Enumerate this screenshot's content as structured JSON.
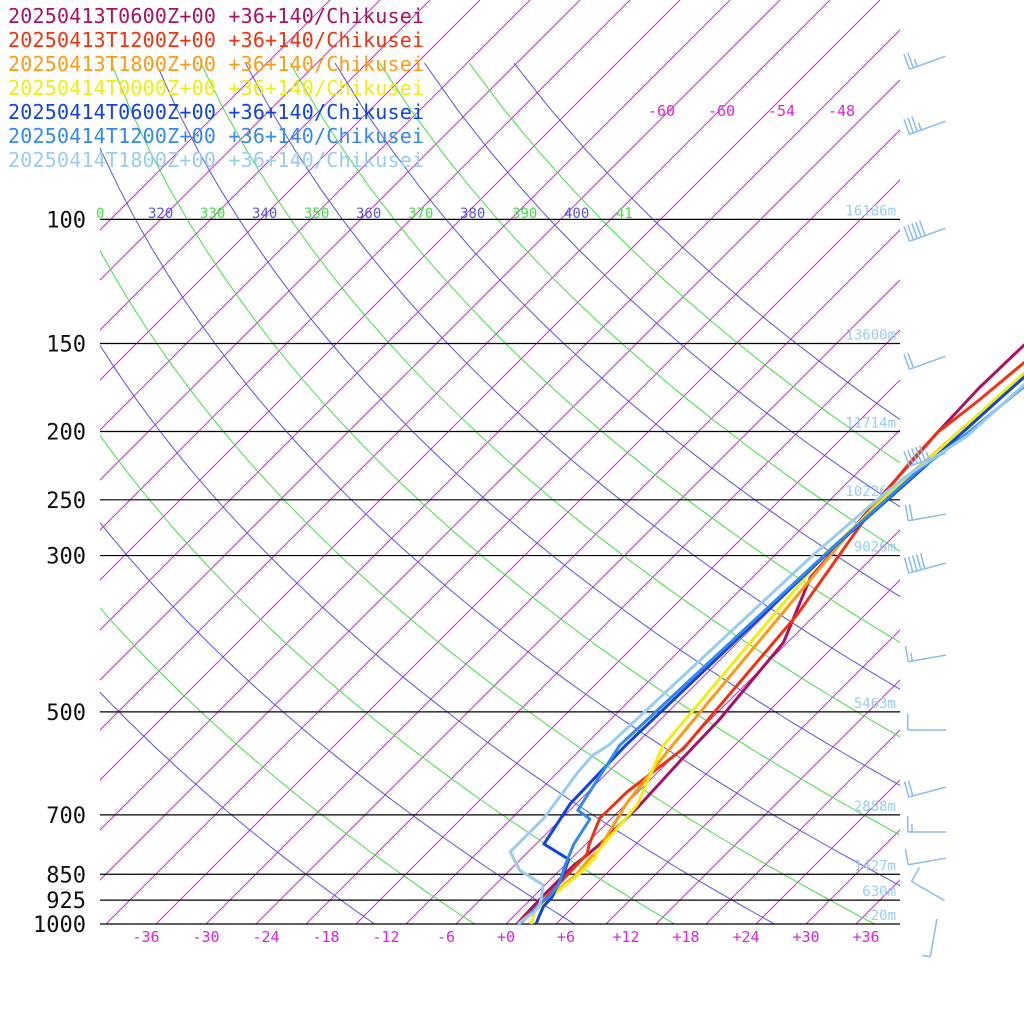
{
  "legend": [
    {
      "label": "20250413T0600Z+00 +36+140/Chikusei",
      "color": "#aa1166"
    },
    {
      "label": "20250413T1200Z+00 +36+140/Chikusei",
      "color": "#ee3311"
    },
    {
      "label": "20250413T1800Z+00 +36+140/Chikusei",
      "color": "#ff9911"
    },
    {
      "label": "20250414T0000Z+00 +36+140/Chikusei",
      "color": "#eeee11"
    },
    {
      "label": "20250414T0600Z+00 +36+140/Chikusei",
      "color": "#1144dd"
    },
    {
      "label": "20250414T1200Z+00 +36+140/Chikusei",
      "color": "#3388ee"
    },
    {
      "label": "20250414T1800Z+00 +36+140/Chikusei",
      "color": "#99ccee"
    }
  ],
  "chart_data": {
    "type": "line",
    "pressure_levels": [
      100,
      150,
      200,
      250,
      300,
      500,
      700,
      850,
      925,
      1000
    ],
    "pressure_labels": [
      "100",
      "150",
      "200",
      "250",
      "300",
      "500",
      "700",
      "850",
      "925",
      "1000"
    ],
    "height_labels": [
      "16186m",
      "13600m",
      "11714m",
      "10226m",
      "9026m",
      "5463m",
      "2888m",
      "1427m",
      "630m",
      "-20m"
    ],
    "x_ticks": [
      -36,
      -30,
      -24,
      -18,
      -12,
      -6,
      0,
      6,
      12,
      18,
      24,
      30,
      36
    ],
    "x_tick_labels": [
      "-36",
      "-30",
      "-24",
      "-18",
      "-12",
      "-6",
      "+0",
      "+6",
      "+12",
      "+18",
      "+24",
      "+30",
      "+36"
    ],
    "theta_labels": [
      "0",
      "320",
      "330",
      "340",
      "350",
      "360",
      "370",
      "380",
      "390",
      "400",
      "41"
    ],
    "theta_label_colors": [
      "#44dd44",
      "#5555dd",
      "#44dd44",
      "#5555dd",
      "#44dd44",
      "#5555dd",
      "#44dd44",
      "#5555dd",
      "#44dd44",
      "#5555dd",
      "#44dd44"
    ],
    "upper_temp_labels": [
      "-60",
      "-60",
      "-54",
      "-48"
    ],
    "colors": {
      "isotherm": "#dd22dd",
      "theta_a": "#5555dd",
      "theta_b": "#44dd44",
      "isobar": "#000000",
      "height_text": "#99ccee",
      "barb": "#88bbee"
    },
    "series": [
      {
        "name": "20250413T0600Z+00 +36+140/Chikusei",
        "color": "#aa1166",
        "points": [
          [
            43,
            40
          ],
          [
            20,
            84
          ],
          [
            -29,
            138
          ],
          [
            -56,
            222
          ],
          [
            -63,
            347
          ],
          [
            -60,
            401
          ],
          [
            -52,
            502
          ],
          [
            -42,
            645
          ],
          [
            -4,
            797
          ],
          [
            9,
            1027
          ],
          [
            11,
            1170
          ],
          [
            15,
            1359
          ],
          [
            14,
            1537
          ],
          [
            12,
            1600
          ],
          [
            9,
            1652
          ],
          [
            9,
            1834
          ],
          [
            10,
            1925
          ],
          [
            11,
            2000
          ]
        ]
      },
      {
        "name": "20250413T1200Z+00 +36+140/Chikusei",
        "color": "#ee3311",
        "points": [
          [
            46,
            42
          ],
          [
            30,
            86
          ],
          [
            5,
            118
          ],
          [
            -6,
            149
          ],
          [
            -30,
            257
          ],
          [
            -51,
            362
          ],
          [
            -60,
            401
          ],
          [
            -58,
            438
          ],
          [
            -50,
            510
          ],
          [
            -18,
            729
          ],
          [
            2,
            1127
          ],
          [
            -11,
            1299
          ],
          [
            -12,
            1416
          ],
          [
            4,
            1545
          ],
          [
            11,
            1590
          ],
          [
            12,
            1676
          ],
          [
            14,
            1859
          ],
          [
            13,
            2000
          ]
        ]
      },
      {
        "name": "20250413T1800Z+00 +36+140/Chikusei",
        "color": "#ff9911",
        "points": [
          [
            47,
            38
          ],
          [
            35,
            75
          ],
          [
            10,
            108
          ],
          [
            -4,
            146
          ],
          [
            -22,
            242
          ],
          [
            -34,
            350
          ],
          [
            -42,
            427
          ],
          [
            -50,
            500
          ],
          [
            -47,
            567
          ],
          [
            -11,
            1140
          ],
          [
            0,
            1350
          ],
          [
            19,
            1575
          ],
          [
            18,
            1614
          ],
          [
            21,
            1702
          ],
          [
            17,
            1808
          ],
          [
            16,
            1873
          ],
          [
            14,
            1915
          ],
          [
            12,
            2000
          ]
        ]
      },
      {
        "name": "20250414T0000Z+00 +36+140/Chikusei",
        "color": "#eeee11",
        "points": [
          [
            46,
            52
          ],
          [
            43,
            61
          ],
          [
            35,
            90
          ],
          [
            20,
            109
          ],
          [
            6,
            128
          ],
          [
            -34,
            342
          ],
          [
            -41,
            425
          ],
          [
            -47,
            482
          ],
          [
            -48,
            529
          ],
          [
            -51,
            595
          ],
          [
            -21,
            1119
          ],
          [
            12,
            1353
          ],
          [
            19,
            1584
          ],
          [
            23,
            1611
          ],
          [
            23,
            1698
          ],
          [
            18,
            1833
          ],
          [
            17,
            1868
          ],
          [
            16,
            1917
          ],
          [
            25,
            2000
          ]
        ]
      },
      {
        "name": "20250414T0600Z+00 +36+140/Chikusei",
        "color": "#1144dd",
        "points": [
          [
            32,
            66
          ],
          [
            14,
            104
          ],
          [
            -31,
            356
          ],
          [
            -39,
            453
          ],
          [
            -49,
            585
          ],
          [
            -51,
            671
          ],
          [
            -59,
            1115
          ],
          [
            -56,
            1350
          ],
          [
            -42,
            1540
          ],
          [
            -2,
            1619
          ],
          [
            8,
            1702
          ],
          [
            14,
            1776
          ],
          [
            19,
            1829
          ],
          [
            20,
            1889
          ],
          [
            24,
            1935
          ],
          [
            30,
            2000
          ]
        ]
      },
      {
        "name": "20250414T1200Z+00 +36+140/Chikusei",
        "color": "#3388ee",
        "points": [
          [
            46,
            40
          ],
          [
            26,
            101
          ],
          [
            4,
            239
          ],
          [
            -29,
            401
          ],
          [
            -41,
            455
          ],
          [
            -50,
            587
          ],
          [
            -65,
            1115
          ],
          [
            -42,
            1379
          ],
          [
            -21,
            1419
          ],
          [
            -12,
            1541
          ],
          [
            0,
            1647
          ],
          [
            13,
            1756
          ],
          [
            15,
            1800
          ],
          [
            16,
            1833
          ],
          [
            14,
            1858
          ],
          [
            14,
            1925
          ],
          [
            14,
            2000
          ]
        ]
      },
      {
        "name": "20250414T1800Z+00 +36+140/Chikusei",
        "color": "#99ccee",
        "points": [
          [
            42,
            32
          ],
          [
            29,
            84
          ],
          [
            10,
            168
          ],
          [
            -4,
            209
          ],
          [
            -27,
            406
          ],
          [
            -47,
            461
          ],
          [
            -53,
            497
          ],
          [
            -58,
            552
          ],
          [
            -62,
            600
          ],
          [
            -76,
            1115
          ],
          [
            -82,
            1152
          ],
          [
            -80,
            1216
          ],
          [
            -68,
            1414
          ],
          [
            -68,
            1579
          ],
          [
            -40,
            1678
          ],
          [
            -2,
            1760
          ],
          [
            9,
            1835
          ],
          [
            15,
            1882
          ],
          [
            16,
            1925
          ],
          [
            12,
            2000
          ]
        ]
      }
    ],
    "winds": [
      {
        "speed": 25,
        "dir": 250
      },
      {
        "speed": 35,
        "dir": 250
      },
      {
        "speed": 50,
        "dir": 250
      },
      {
        "speed": 20,
        "dir": 250
      },
      {
        "speed": 55,
        "dir": 250
      },
      {
        "speed": 20,
        "dir": 260
      },
      {
        "speed": 50,
        "dir": 255
      },
      {
        "speed": 15,
        "dir": 260
      },
      {
        "speed": 10,
        "dir": 270
      },
      {
        "speed": 20,
        "dir": 255
      },
      {
        "speed": 15,
        "dir": 270
      },
      {
        "speed": 10,
        "dir": 260
      },
      {
        "speed": 10,
        "dir": 300
      },
      {
        "speed": 5,
        "dir": 190
      }
    ]
  }
}
